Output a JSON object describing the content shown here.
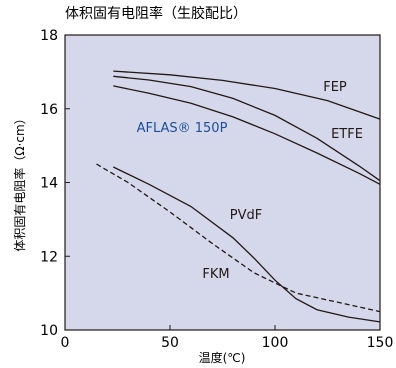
{
  "chart_data": {
    "type": "line",
    "title": "体积固有电阻率（生胶配比）",
    "xlabel": "温度(℃)",
    "ylabel": "体积固有电阻率（Ω·cm）",
    "xlim": [
      0,
      150
    ],
    "ylim": [
      10,
      18
    ],
    "xticks": [
      "0",
      "50",
      "100",
      "150"
    ],
    "yticks": [
      "10",
      "12",
      "14",
      "16",
      "18"
    ],
    "grid": false,
    "plot_background": "#d4d8ea",
    "series": [
      {
        "name": "FEP",
        "color": "#231815",
        "dashed": false,
        "x": [
          23,
          50,
          75,
          100,
          125,
          150
        ],
        "y": [
          17.02,
          16.92,
          16.77,
          16.55,
          16.22,
          15.72
        ]
      },
      {
        "name": "ETFE",
        "color": "#231815",
        "dashed": false,
        "x": [
          23,
          40,
          60,
          80,
          100,
          120,
          140,
          150
        ],
        "y": [
          16.88,
          16.78,
          16.6,
          16.28,
          15.82,
          15.2,
          14.45,
          14.05
        ]
      },
      {
        "name": "AFLAS® 150P",
        "color": "#231815",
        "label_color": "#1d4e9a",
        "dashed": false,
        "x": [
          23,
          40,
          60,
          80,
          100,
          120,
          140,
          150
        ],
        "y": [
          16.62,
          16.42,
          16.15,
          15.78,
          15.32,
          14.8,
          14.25,
          13.95
        ]
      },
      {
        "name": "PVdF",
        "color": "#231815",
        "dashed": false,
        "x": [
          23,
          40,
          60,
          80,
          90,
          100,
          110,
          120,
          135,
          150
        ],
        "y": [
          14.42,
          13.95,
          13.35,
          12.5,
          11.95,
          11.35,
          10.85,
          10.55,
          10.35,
          10.22
        ]
      },
      {
        "name": "FKM",
        "color": "#231815",
        "dashed": true,
        "x": [
          15,
          30,
          50,
          70,
          90,
          110,
          130,
          150
        ],
        "y": [
          14.5,
          14.0,
          13.2,
          12.35,
          11.55,
          11.0,
          10.75,
          10.5
        ]
      }
    ]
  }
}
